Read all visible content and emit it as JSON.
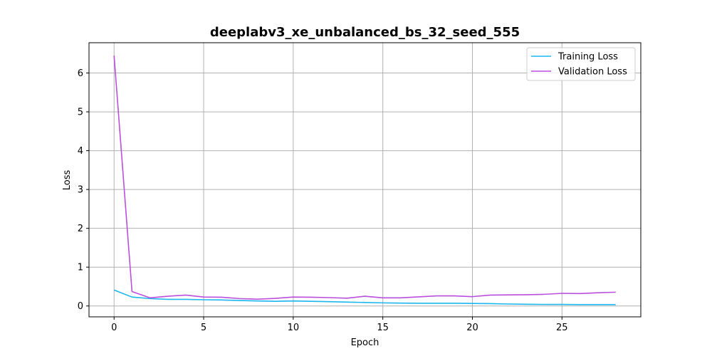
{
  "chart_data": {
    "type": "line",
    "title": "deeplabv3_xe_unbalanced_bs_32_seed_555",
    "xlabel": "Epoch",
    "ylabel": "Loss",
    "xlim": [
      -1.4,
      29.4
    ],
    "ylim": [
      -0.28,
      6.78
    ],
    "xticks": [
      0,
      5,
      10,
      15,
      20,
      25
    ],
    "yticks": [
      0,
      1,
      2,
      3,
      4,
      5,
      6
    ],
    "grid": true,
    "legend_position": "top-right",
    "x": [
      0,
      1,
      2,
      3,
      4,
      5,
      6,
      7,
      8,
      9,
      10,
      11,
      12,
      13,
      14,
      15,
      16,
      17,
      18,
      19,
      20,
      21,
      22,
      23,
      24,
      25,
      26,
      27,
      28
    ],
    "series": [
      {
        "name": "Training Loss",
        "color": "#1bb6f0",
        "values": [
          0.41,
          0.23,
          0.19,
          0.17,
          0.17,
          0.16,
          0.155,
          0.14,
          0.13,
          0.12,
          0.13,
          0.12,
          0.11,
          0.1,
          0.09,
          0.08,
          0.075,
          0.07,
          0.07,
          0.07,
          0.065,
          0.06,
          0.05,
          0.045,
          0.04,
          0.04,
          0.035,
          0.035,
          0.035
        ]
      },
      {
        "name": "Validation Loss",
        "color": "#bb4fdd",
        "values": [
          6.45,
          0.37,
          0.21,
          0.25,
          0.28,
          0.23,
          0.225,
          0.19,
          0.175,
          0.195,
          0.23,
          0.225,
          0.215,
          0.2,
          0.25,
          0.21,
          0.21,
          0.235,
          0.26,
          0.26,
          0.24,
          0.28,
          0.285,
          0.29,
          0.3,
          0.325,
          0.32,
          0.34,
          0.355
        ]
      }
    ]
  }
}
